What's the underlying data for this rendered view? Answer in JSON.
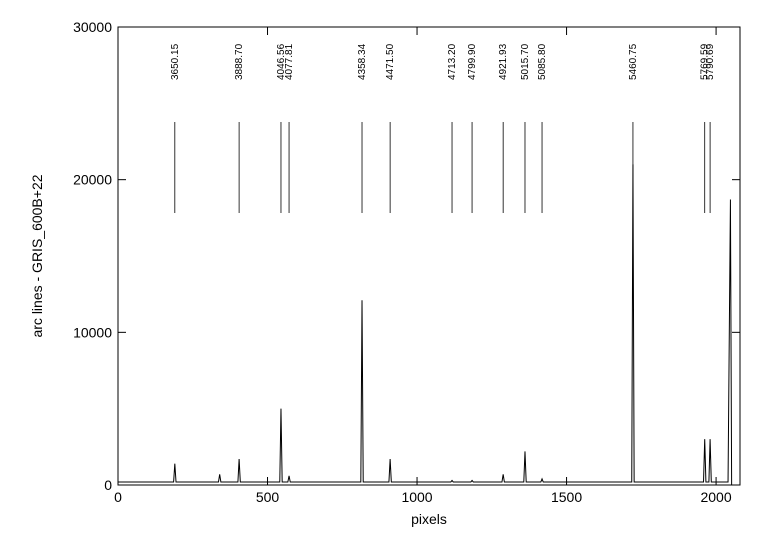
{
  "chart_data": {
    "type": "line",
    "xlabel": "pixels",
    "ylabel": "arc lines  -  GRIS_600B+22",
    "xlim": [
      0,
      2080
    ],
    "ylim": [
      0,
      30000
    ],
    "xticks": [
      0,
      500,
      1000,
      1500,
      2000
    ],
    "yticks": [
      0,
      10000,
      20000,
      30000
    ],
    "series": [
      {
        "color": "#000000",
        "x": [
          0,
          186,
          190,
          194,
          336,
          340,
          344,
          401,
          405,
          409,
          541,
          545,
          549,
          568,
          572,
          576,
          812,
          816,
          820,
          906,
          910,
          914,
          1113,
          1117,
          1121,
          1180,
          1184,
          1188,
          1284,
          1288,
          1292,
          1357,
          1361,
          1365,
          1414,
          1418,
          1422,
          1718,
          1722,
          1726,
          1958,
          1962,
          1966,
          1976,
          1980,
          1984,
          2040,
          2048,
          2052
        ],
        "values": [
          200,
          200,
          1400,
          200,
          200,
          700,
          200,
          200,
          1700,
          200,
          200,
          5000,
          200,
          200,
          600,
          200,
          200,
          12100,
          200,
          200,
          1700,
          200,
          200,
          300,
          200,
          200,
          300,
          200,
          200,
          700,
          200,
          200,
          2200,
          200,
          200,
          400,
          200,
          200,
          21000,
          200,
          200,
          3000,
          200,
          200,
          3000,
          200,
          200,
          18700,
          0
        ]
      }
    ],
    "line_ids": {
      "labels": [
        "3650.15",
        "3888.70",
        "4046.56",
        "4077.81",
        "4358.34",
        "4471.50",
        "4713.20",
        "4799.90",
        "4921.93",
        "5015.70",
        "5085.80",
        "5460.75",
        "5769.59",
        "5790.69"
      ],
      "x": [
        190,
        405,
        545,
        572,
        816,
        910,
        1117,
        1184,
        1288,
        1361,
        1418,
        1722,
        1962,
        1980
      ]
    }
  }
}
